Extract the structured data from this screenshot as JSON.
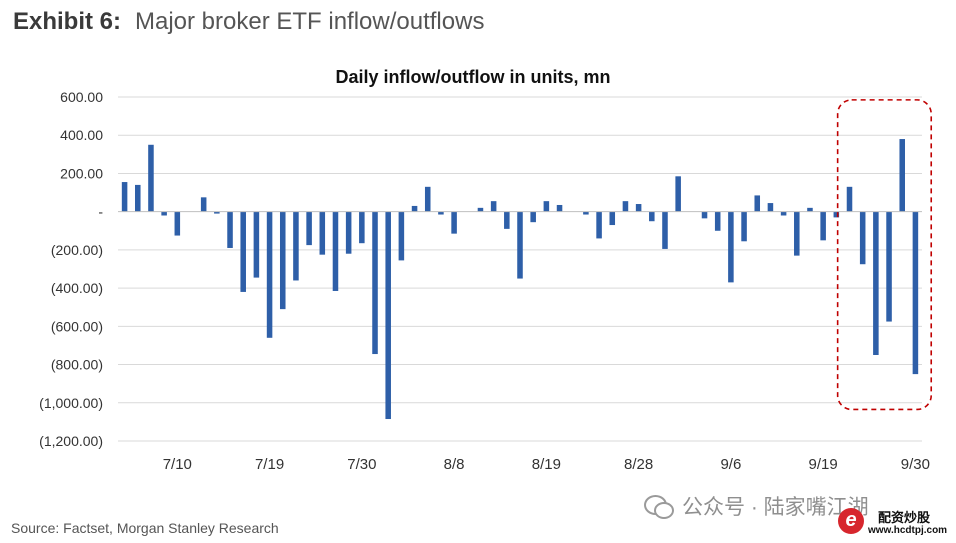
{
  "header": {
    "exhibit_label": "Exhibit 6:",
    "title": "Major broker ETF inflow/outflows"
  },
  "source": "Source: Factset, Morgan Stanley Research",
  "watermark": {
    "icon": "wechat-icon",
    "text": "公众号 · 陆家嘴江湖"
  },
  "logo": {
    "mark": "e",
    "name": "配资炒股",
    "url": "www.hcdtpj.com"
  },
  "chart_data": {
    "type": "bar",
    "title": "Daily inflow/outflow in units, mn",
    "xlabel": "",
    "ylabel": "",
    "ylim": [
      -1200,
      600
    ],
    "y_ticks": [
      600,
      400,
      200,
      0,
      -200,
      -400,
      -600,
      -800,
      -1000,
      -1200
    ],
    "y_tick_labels": [
      "600.00",
      "400.00",
      "200.00",
      "-",
      "(200.00)",
      "(400.00)",
      "(600.00)",
      "(800.00)",
      "(1,000.00)",
      "(1,200.00)"
    ],
    "x_tick_labels": [
      {
        "label": "7/10",
        "index": 4
      },
      {
        "label": "7/19",
        "index": 11
      },
      {
        "label": "7/30",
        "index": 18
      },
      {
        "label": "8/8",
        "index": 25
      },
      {
        "label": "8/19",
        "index": 32
      },
      {
        "label": "8/28",
        "index": 39
      },
      {
        "label": "9/6",
        "index": 46
      },
      {
        "label": "9/19",
        "index": 53
      },
      {
        "label": "9/30",
        "index": 60
      }
    ],
    "grid": true,
    "color": "#2e5fa8",
    "values": [
      155,
      140,
      350,
      -20,
      -125,
      0,
      75,
      -10,
      -190,
      -420,
      -345,
      -660,
      -510,
      -360,
      -175,
      -225,
      -415,
      -220,
      -165,
      -745,
      -1085,
      -255,
      30,
      130,
      -15,
      -115,
      0,
      20,
      55,
      -90,
      -350,
      -55,
      55,
      35,
      0,
      -15,
      -140,
      -70,
      55,
      40,
      -50,
      -195,
      185,
      0,
      -35,
      -100,
      -370,
      -155,
      85,
      45,
      -20,
      -230,
      20,
      -150,
      -30,
      130,
      -275,
      -750,
      -575,
      380,
      -850
    ],
    "annotations": [
      {
        "type": "dashed-rounded-box",
        "color": "#c00000",
        "from_index": 55,
        "to_index": 60,
        "y_range": [
          -1035,
          585
        ]
      }
    ]
  }
}
